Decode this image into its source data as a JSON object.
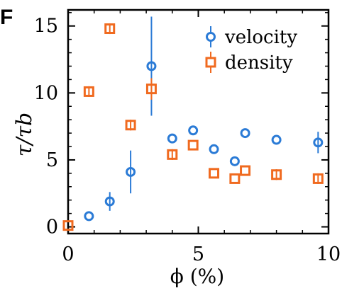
{
  "panel_label": "F",
  "colors": {
    "velocity": "#2b7bd6",
    "density": "#f06a1f",
    "axis": "#000000"
  },
  "chart_data": {
    "type": "scatter",
    "xlabel": "ϕ (%)",
    "ylabel": "τ/τb",
    "xlim": [
      0,
      10
    ],
    "ylim": [
      -0.5,
      16.2
    ],
    "xticks": [
      0,
      5,
      10
    ],
    "yticks": [
      0,
      5,
      10,
      15
    ],
    "grid": false,
    "legend_position": "top-right",
    "series": [
      {
        "name": "velocity",
        "marker": "circle",
        "points": [
          {
            "x": 0.8,
            "y": 0.8
          },
          {
            "x": 1.6,
            "y": 1.9,
            "err": 0.7
          },
          {
            "x": 2.4,
            "y": 4.1,
            "err": 1.6
          },
          {
            "x": 3.2,
            "y": 12.0,
            "err": 3.7
          },
          {
            "x": 4.0,
            "y": 6.6
          },
          {
            "x": 4.8,
            "y": 7.2
          },
          {
            "x": 5.6,
            "y": 5.8
          },
          {
            "x": 6.4,
            "y": 4.9
          },
          {
            "x": 6.8,
            "y": 7.0
          },
          {
            "x": 8.0,
            "y": 6.5
          },
          {
            "x": 9.6,
            "y": 6.3,
            "err": 0.8
          }
        ]
      },
      {
        "name": "density",
        "marker": "square",
        "points": [
          {
            "x": 0.0,
            "y": 0.1
          },
          {
            "x": 0.8,
            "y": 10.1,
            "err": 0.4
          },
          {
            "x": 1.6,
            "y": 14.8,
            "err": 0.4
          },
          {
            "x": 2.4,
            "y": 7.6,
            "err": 0.4
          },
          {
            "x": 3.2,
            "y": 10.3,
            "err": 0.8
          },
          {
            "x": 4.0,
            "y": 5.4,
            "err": 0.4
          },
          {
            "x": 4.8,
            "y": 6.1
          },
          {
            "x": 5.6,
            "y": 4.0
          },
          {
            "x": 6.4,
            "y": 3.6
          },
          {
            "x": 6.8,
            "y": 4.2
          },
          {
            "x": 8.0,
            "y": 3.9,
            "err": 0.4
          },
          {
            "x": 9.6,
            "y": 3.6,
            "err": 0.4
          }
        ]
      }
    ]
  }
}
